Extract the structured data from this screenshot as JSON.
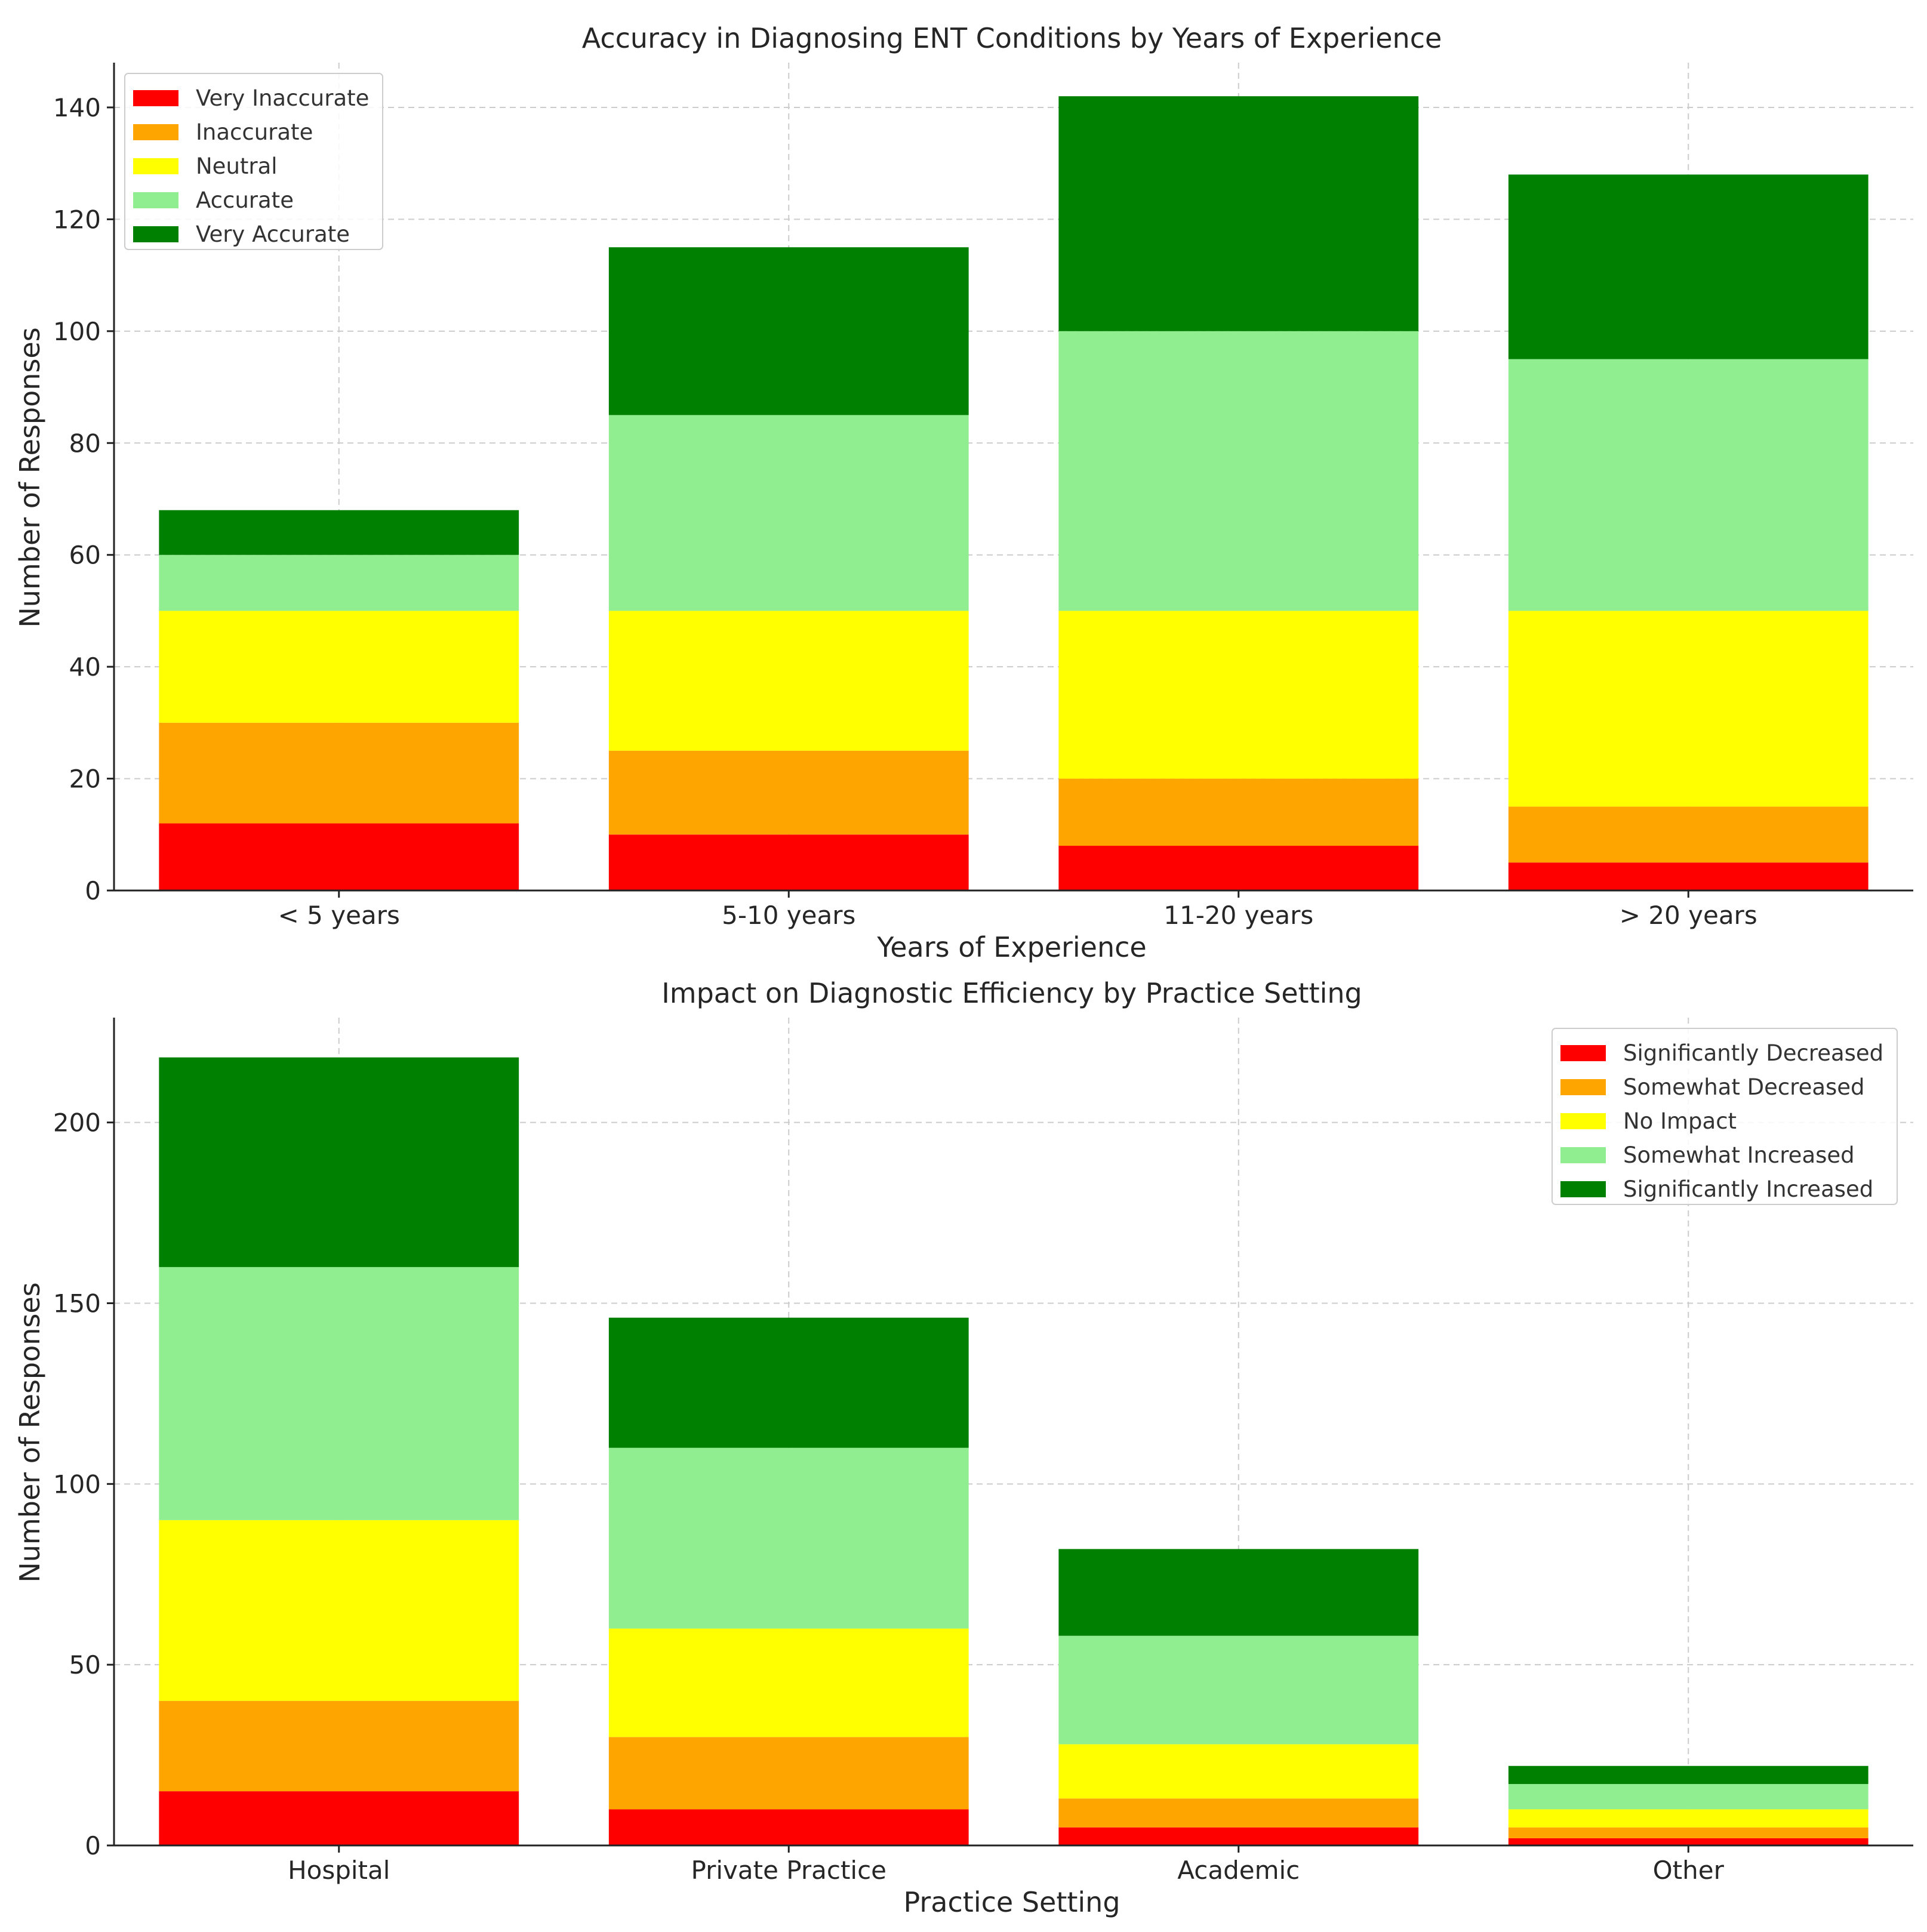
{
  "chart_data": [
    {
      "type": "bar",
      "stacked": true,
      "title": "Accuracy in Diagnosing ENT Conditions by Years of Experience",
      "xlabel": "Years of Experience",
      "ylabel": "Number of Responses",
      "categories": [
        "< 5 years",
        "5-10 years",
        "11-20 years",
        "> 20 years"
      ],
      "ylim": [
        0,
        148
      ],
      "yticks": [
        0,
        20,
        40,
        60,
        80,
        100,
        120,
        140
      ],
      "grid": true,
      "legend_position": "top-left",
      "series": [
        {
          "name": "Very Inaccurate",
          "color": "#ff0000",
          "values": [
            12,
            10,
            8,
            5
          ]
        },
        {
          "name": "Inaccurate",
          "color": "#ffa500",
          "values": [
            18,
            15,
            12,
            10
          ]
        },
        {
          "name": "Neutral",
          "color": "#ffff00",
          "values": [
            20,
            25,
            30,
            35
          ]
        },
        {
          "name": "Accurate",
          "color": "#90ee90",
          "values": [
            10,
            35,
            50,
            45
          ]
        },
        {
          "name": "Very Accurate",
          "color": "#008000",
          "values": [
            8,
            30,
            42,
            33
          ]
        }
      ]
    },
    {
      "type": "bar",
      "stacked": true,
      "title": "Impact on Diagnostic Efficiency by Practice Setting",
      "xlabel": "Practice Setting",
      "ylabel": "Number of Responses",
      "categories": [
        "Hospital",
        "Private Practice",
        "Academic",
        "Other"
      ],
      "ylim": [
        0,
        229
      ],
      "yticks": [
        0,
        50,
        100,
        150,
        200
      ],
      "grid": true,
      "legend_position": "top-right",
      "series": [
        {
          "name": "Significantly Decreased",
          "color": "#ff0000",
          "values": [
            15,
            10,
            5,
            2
          ]
        },
        {
          "name": "Somewhat Decreased",
          "color": "#ffa500",
          "values": [
            25,
            20,
            8,
            3
          ]
        },
        {
          "name": "No Impact",
          "color": "#ffff00",
          "values": [
            50,
            30,
            15,
            5
          ]
        },
        {
          "name": "Somewhat Increased",
          "color": "#90ee90",
          "values": [
            70,
            50,
            30,
            7
          ]
        },
        {
          "name": "Significantly Increased",
          "color": "#008000",
          "values": [
            58,
            36,
            24,
            5
          ]
        }
      ]
    }
  ]
}
